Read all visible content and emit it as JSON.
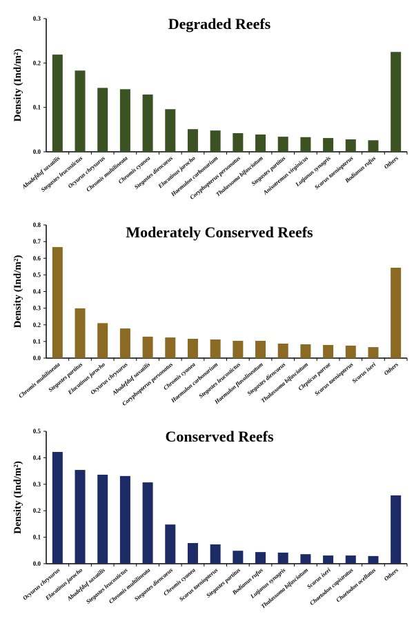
{
  "chart_data": [
    {
      "type": "bar",
      "title": "Degraded Reefs",
      "ylabel": "Density (Ind/m²)",
      "ylim": [
        0,
        0.3
      ],
      "yticks": [
        "0.0",
        "0.1",
        "0.2",
        "0.3"
      ],
      "color": "#3b5323",
      "categories": [
        "Abudefduf saxatilis",
        "Stegastes leucostictus",
        "Ocyurus chrysurus",
        "Chromis multilineata",
        "Chromis cyanea",
        "Stegastes diencaeus",
        "Elacatinus jarocho",
        "Haemulon carbonarium",
        "Coryphopterus personatus",
        "Thalassoma bifasciatum",
        "Stegastes partitus",
        "Anisotremus virginicus",
        "Lutjanus synagris",
        "Scarus taeniopterus",
        "Bodianus rufus",
        "Others"
      ],
      "values": [
        0.219,
        0.183,
        0.144,
        0.141,
        0.129,
        0.096,
        0.051,
        0.048,
        0.042,
        0.039,
        0.034,
        0.033,
        0.031,
        0.028,
        0.026,
        0.225
      ]
    },
    {
      "type": "bar",
      "title": "Moderately Conserved Reefs",
      "ylabel": "Density (Ind/m²)",
      "ylim": [
        0,
        0.8
      ],
      "yticks": [
        "0.0",
        "0.1",
        "0.2",
        "0.3",
        "0.4",
        "0.5",
        "0.6",
        "0.7",
        "0.8"
      ],
      "color": "#8b6a23",
      "categories": [
        "Chromis multilineata",
        "Stegastes partitus",
        "Elacatinus jarocho",
        "Ocyurus chrysurus",
        "Abudefduf saxatilis",
        "Coryphopterus personatus",
        "Chromis cyanea",
        "Haemulon carbonarium",
        "Stegastes leucostictus",
        "Haemulon flavolineatum",
        "Stegastes diencaeus",
        "Thalassoma bifasciatum",
        "Clepticus parrae",
        "Scarus taeniopterus",
        "Scarus iseri",
        "Others"
      ],
      "values": [
        0.667,
        0.299,
        0.21,
        0.178,
        0.129,
        0.124,
        0.116,
        0.112,
        0.104,
        0.104,
        0.087,
        0.083,
        0.079,
        0.075,
        0.066,
        0.543
      ]
    },
    {
      "type": "bar",
      "title": "Conserved Reefs",
      "ylabel": "Density (Ind/m²)",
      "ylim": [
        0,
        0.5
      ],
      "yticks": [
        "0.0",
        "0.1",
        "0.2",
        "0.3",
        "0.4",
        "0.5"
      ],
      "color": "#1c2a66",
      "categories": [
        "Ocyurus chrysurus",
        "Elacatinus jarocho",
        "Abudefduf saxatilis",
        "Stegastes leucostictus",
        "Chromis multilineata",
        "Stegastes diencaeus",
        "Chromis cyanea",
        "Scarus taeniopterus",
        "Stegastes partitus",
        "Bodianus rufus",
        "Lutjanus synagris",
        "Thalassoma bifasciatum",
        "Scarus iseri",
        "Chaetodon capistratus",
        "Chaetodon ocellatus",
        "Others"
      ],
      "values": [
        0.422,
        0.354,
        0.336,
        0.331,
        0.307,
        0.148,
        0.078,
        0.073,
        0.049,
        0.044,
        0.042,
        0.036,
        0.031,
        0.031,
        0.029,
        0.258
      ]
    }
  ]
}
